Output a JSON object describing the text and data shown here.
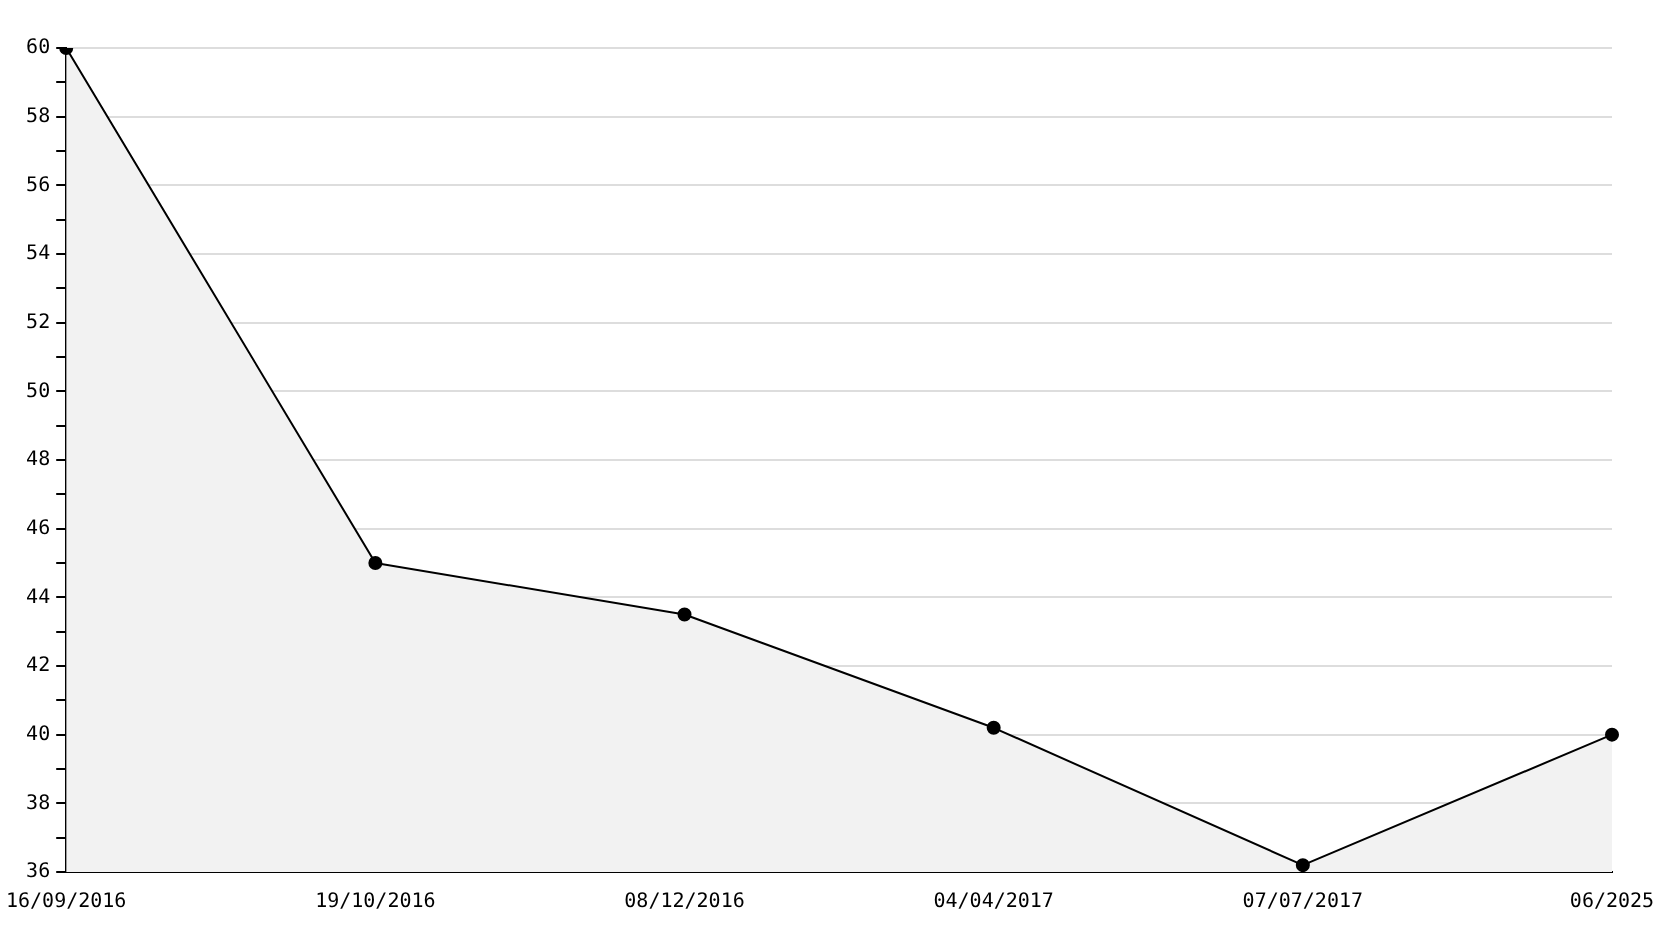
{
  "chart_data": {
    "type": "area",
    "categories": [
      "16/09/2016",
      "19/10/2016",
      "08/12/2016",
      "04/04/2017",
      "07/07/2017",
      "06/2025"
    ],
    "series": [
      {
        "color": "#000000",
        "values": [
          60,
          45,
          43.5,
          40.2,
          36.2,
          40
        ]
      }
    ],
    "ylim": [
      36,
      60
    ],
    "yticks": [
      36,
      {
        "value": 37,
        "label": null
      },
      38,
      {
        "value": 39,
        "label": null
      },
      40,
      {
        "value": 41,
        "label": null
      },
      42,
      {
        "value": 43,
        "label": null
      },
      44,
      {
        "value": 45,
        "label": null
      },
      46,
      {
        "value": 47,
        "label": null
      },
      48,
      {
        "value": 49,
        "label": null
      },
      50,
      {
        "value": 51,
        "label": null
      },
      52,
      {
        "value": 53,
        "label": null
      },
      54,
      {
        "value": 55,
        "label": null
      },
      56,
      {
        "value": 57,
        "label": null
      },
      58,
      {
        "value": 59,
        "label": null
      },
      60
    ],
    "grid": "y",
    "marker": "circle",
    "line_style": "solid",
    "legend": false
  }
}
